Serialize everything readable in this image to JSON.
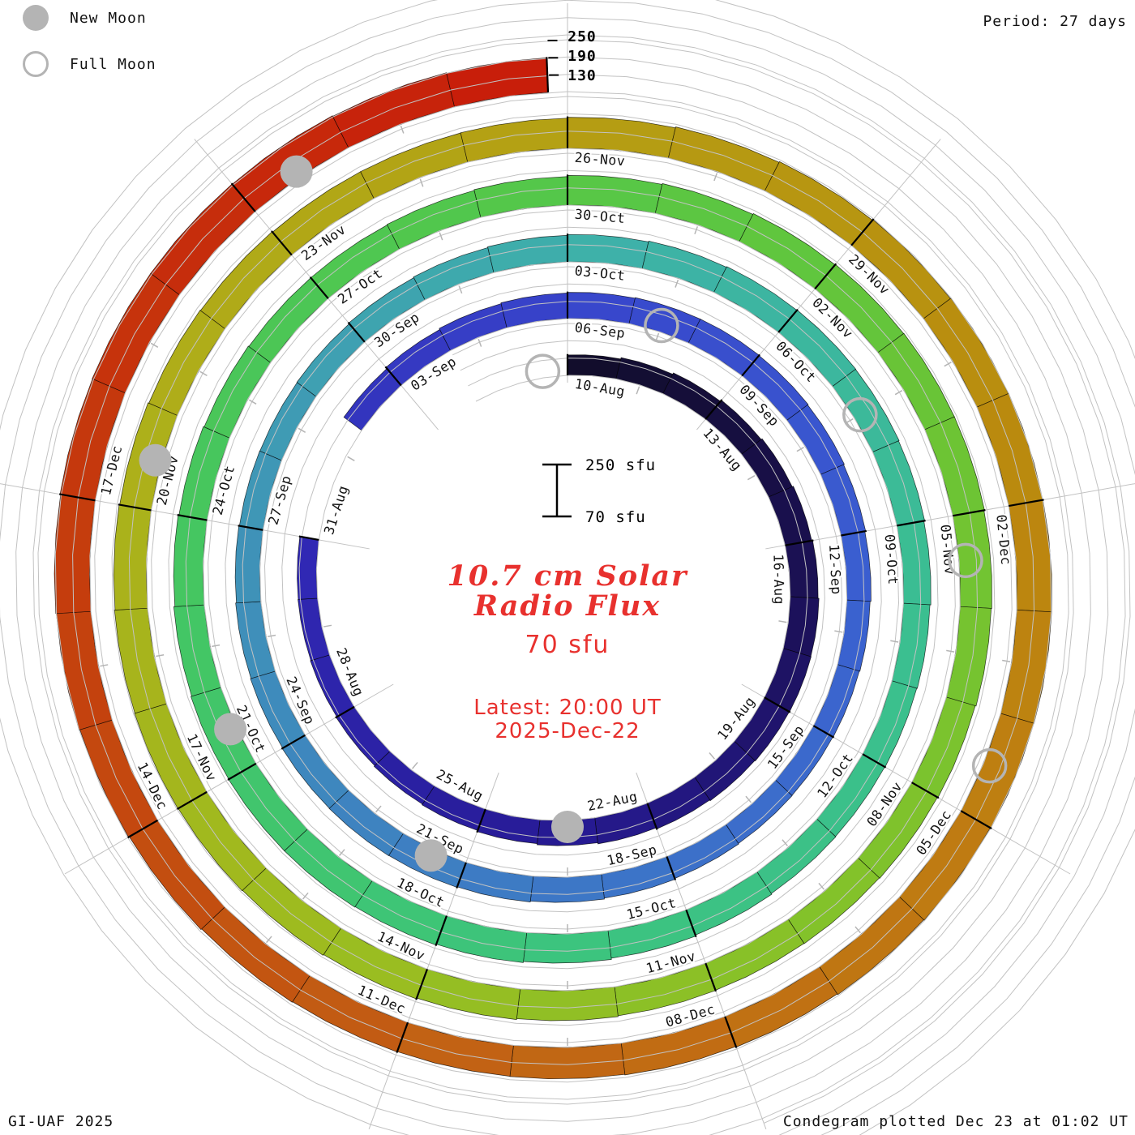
{
  "legend": {
    "new_moon_label": "New Moon",
    "full_moon_label": "Full Moon"
  },
  "header": {
    "period_label": "Period: 27 days"
  },
  "footer": {
    "credit": "GI-UAF 2025",
    "plotted": "Condegram plotted Dec 23 at 01:02 UT"
  },
  "center": {
    "title_line1": "10.7 cm Solar",
    "title_line2": "Radio Flux",
    "unit_label": "70 sfu",
    "latest_line1": "Latest: 20:00 UT",
    "latest_line2": "2025-Dec-22"
  },
  "scale": {
    "top_ticks": [
      "250",
      "190",
      "130"
    ],
    "bar_top_label": "250 sfu",
    "bar_bottom_label": "70 sfu",
    "min_sfu": 70,
    "max_sfu": 250
  },
  "chart_data": {
    "type": "bar",
    "subtype": "condegram-spiral",
    "title": "10.7 cm Solar Radio Flux",
    "units": "sfu",
    "period_days": 27,
    "start_date": "2025-08-10",
    "end_date": "2025-12-22",
    "latest_time": "20:00 UT",
    "radial_range_sfu": [
      70,
      250
    ],
    "radial_ticks_sfu": [
      130,
      190,
      250
    ],
    "gap_dates": [
      "2025-08-31",
      "2025-09-01"
    ],
    "date_labels": [
      {
        "d": 0,
        "t": "10-Aug"
      },
      {
        "d": 3,
        "t": "13-Aug"
      },
      {
        "d": 6,
        "t": "16-Aug"
      },
      {
        "d": 9,
        "t": "19-Aug"
      },
      {
        "d": 12,
        "t": "22-Aug"
      },
      {
        "d": 15,
        "t": "25-Aug"
      },
      {
        "d": 18,
        "t": "28-Aug"
      },
      {
        "d": 21,
        "t": "31-Aug"
      },
      {
        "d": 24,
        "t": "03-Sep"
      },
      {
        "d": 27,
        "t": "06-Sep"
      },
      {
        "d": 30,
        "t": "09-Sep"
      },
      {
        "d": 33,
        "t": "12-Sep"
      },
      {
        "d": 36,
        "t": "15-Sep"
      },
      {
        "d": 39,
        "t": "18-Sep"
      },
      {
        "d": 42,
        "t": "21-Sep"
      },
      {
        "d": 45,
        "t": "24-Sep"
      },
      {
        "d": 48,
        "t": "27-Sep"
      },
      {
        "d": 51,
        "t": "30-Sep"
      },
      {
        "d": 54,
        "t": "03-Oct"
      },
      {
        "d": 57,
        "t": "06-Oct"
      },
      {
        "d": 60,
        "t": "09-Oct"
      },
      {
        "d": 63,
        "t": "12-Oct"
      },
      {
        "d": 66,
        "t": "15-Oct"
      },
      {
        "d": 69,
        "t": "18-Oct"
      },
      {
        "d": 72,
        "t": "21-Oct"
      },
      {
        "d": 75,
        "t": "24-Oct"
      },
      {
        "d": 78,
        "t": "27-Oct"
      },
      {
        "d": 81,
        "t": "30-Oct"
      },
      {
        "d": 84,
        "t": "02-Nov"
      },
      {
        "d": 87,
        "t": "05-Nov"
      },
      {
        "d": 90,
        "t": "08-Nov"
      },
      {
        "d": 93,
        "t": "11-Nov"
      },
      {
        "d": 96,
        "t": "14-Nov"
      },
      {
        "d": 99,
        "t": "17-Nov"
      },
      {
        "d": 102,
        "t": "20-Nov"
      },
      {
        "d": 105,
        "t": "23-Nov"
      },
      {
        "d": 108,
        "t": "26-Nov"
      },
      {
        "d": 111,
        "t": "29-Nov"
      },
      {
        "d": 114,
        "t": "02-Dec"
      },
      {
        "d": 117,
        "t": "05-Dec"
      },
      {
        "d": 120,
        "t": "08-Dec"
      },
      {
        "d": 123,
        "t": "11-Dec"
      },
      {
        "d": 126,
        "t": "14-Dec"
      },
      {
        "d": 129,
        "t": "17-Dec"
      }
    ],
    "daily_flux": {
      "start": "2025-08-10",
      "values": [
        141,
        146,
        151,
        156,
        160,
        164,
        167,
        170,
        171,
        170,
        168,
        165,
        161,
        157,
        153,
        149,
        146,
        143,
        140,
        138,
        137,
        null,
        null,
        147,
        152,
        156,
        159,
        161,
        163,
        163,
        162,
        160,
        157,
        154,
        151,
        149,
        148,
        149,
        151,
        154,
        157,
        160,
        162,
        163,
        162,
        160,
        158,
        155,
        153,
        152,
        153,
        156,
        159,
        162,
        165,
        168,
        170,
        171,
        170,
        168,
        165,
        162,
        160,
        159,
        160,
        163,
        167,
        171,
        175,
        178,
        180,
        180,
        179,
        176,
        172,
        169,
        166,
        164,
        164,
        166,
        169,
        173,
        176,
        179,
        181,
        182,
        182,
        180,
        178,
        175,
        173,
        171,
        170,
        171,
        174,
        177,
        180,
        183,
        185,
        186,
        185,
        183,
        181,
        178,
        176,
        174,
        174,
        175,
        178,
        181,
        184,
        187,
        189,
        190,
        191,
        191,
        190,
        188,
        186,
        183,
        181,
        179,
        178,
        179,
        181,
        184,
        187,
        190,
        192,
        194,
        195,
        195,
        194,
        192,
        190
      ]
    },
    "moons": {
      "full": [
        "2025-08-09",
        "2025-09-07",
        "2025-10-07",
        "2025-11-05",
        "2025-12-04"
      ],
      "new": [
        "2025-08-23",
        "2025-09-21",
        "2025-10-21",
        "2025-11-20",
        "2025-12-20"
      ]
    },
    "colormap_stops": [
      [
        0.0,
        "#120d2c"
      ],
      [
        0.05,
        "#1c1158"
      ],
      [
        0.1,
        "#271b96"
      ],
      [
        0.15,
        "#3028b4"
      ],
      [
        0.2,
        "#3846cc"
      ],
      [
        0.25,
        "#3a60d0"
      ],
      [
        0.3,
        "#3d78c6"
      ],
      [
        0.35,
        "#3f92b8"
      ],
      [
        0.4,
        "#3eb0aa"
      ],
      [
        0.45,
        "#3bbe92"
      ],
      [
        0.5,
        "#3cc47e"
      ],
      [
        0.55,
        "#44c662"
      ],
      [
        0.6,
        "#55c748"
      ],
      [
        0.64,
        "#6cc434"
      ],
      [
        0.68,
        "#84c22a"
      ],
      [
        0.72,
        "#9cbc20"
      ],
      [
        0.76,
        "#adb01a"
      ],
      [
        0.8,
        "#b4a014"
      ],
      [
        0.84,
        "#ba8c0e"
      ],
      [
        0.875,
        "#bf7a12"
      ],
      [
        0.91,
        "#c26214"
      ],
      [
        0.945,
        "#c4440e"
      ],
      [
        1.0,
        "#c81e0a"
      ]
    ],
    "colors": {
      "text_red": "#e8312e",
      "moon_gray": "#b4b4b4",
      "grid_gray": "#c2c2c2",
      "label_black": "#141414"
    }
  }
}
